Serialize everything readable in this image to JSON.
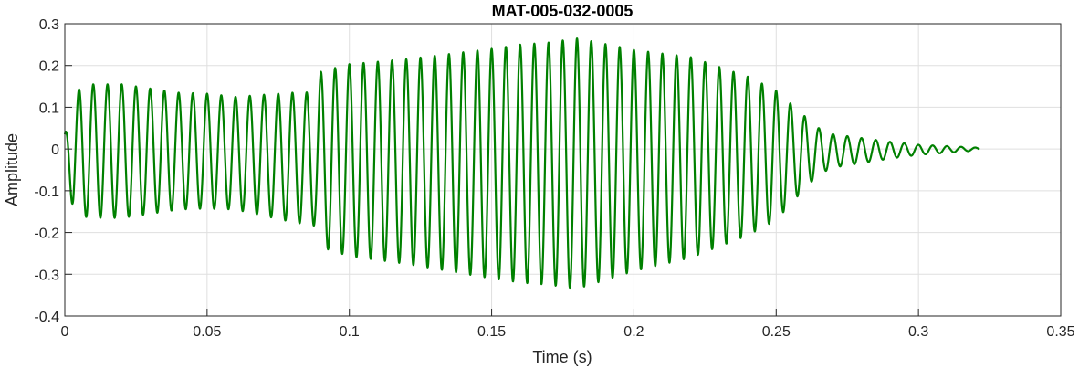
{
  "chart_data": {
    "type": "line",
    "title": "MAT-005-032-0005",
    "xlabel": "Time (s)",
    "ylabel": "Amplitude",
    "xlim": [
      0,
      0.35
    ],
    "ylim": [
      -0.4,
      0.3
    ],
    "xticks": [
      0,
      0.05,
      0.1,
      0.15,
      0.2,
      0.25,
      0.3,
      0.35
    ],
    "xtick_labels": [
      "0",
      "0.05",
      "0.1",
      "0.15",
      "0.2",
      "0.25",
      "0.3",
      "0.35"
    ],
    "yticks": [
      -0.4,
      -0.3,
      -0.2,
      -0.1,
      0,
      0.1,
      0.2,
      0.3
    ],
    "ytick_labels": [
      "-0.4",
      "-0.3",
      "-0.2",
      "-0.1",
      "0",
      "0.1",
      "0.2",
      "0.3"
    ],
    "grid": true,
    "line_color": "#008000",
    "signal": {
      "t_end": 0.3215,
      "frequency_hz": 200,
      "envelope": [
        [
          0,
          0.04
        ],
        [
          0.003,
          0.14
        ],
        [
          0.008,
          0.16
        ],
        [
          0.02,
          0.16
        ],
        [
          0.04,
          0.14
        ],
        [
          0.06,
          0.135
        ],
        [
          0.08,
          0.155
        ],
        [
          0.088,
          0.16
        ],
        [
          0.09,
          0.21
        ],
        [
          0.1,
          0.23
        ],
        [
          0.12,
          0.245
        ],
        [
          0.14,
          0.265
        ],
        [
          0.16,
          0.285
        ],
        [
          0.17,
          0.29
        ],
        [
          0.18,
          0.3
        ],
        [
          0.2,
          0.265
        ],
        [
          0.22,
          0.24
        ],
        [
          0.24,
          0.19
        ],
        [
          0.25,
          0.155
        ],
        [
          0.258,
          0.1
        ],
        [
          0.265,
          0.055
        ],
        [
          0.27,
          0.04
        ],
        [
          0.28,
          0.03
        ],
        [
          0.29,
          0.02
        ],
        [
          0.3,
          0.012
        ],
        [
          0.31,
          0.008
        ],
        [
          0.3215,
          0.003
        ]
      ],
      "offset": [
        [
          0,
          -0.005
        ],
        [
          0.05,
          -0.005
        ],
        [
          0.09,
          -0.025
        ],
        [
          0.15,
          -0.035
        ],
        [
          0.18,
          -0.035
        ],
        [
          0.22,
          -0.02
        ],
        [
          0.25,
          -0.015
        ],
        [
          0.265,
          -0.005
        ],
        [
          0.3215,
          0
        ]
      ]
    }
  }
}
